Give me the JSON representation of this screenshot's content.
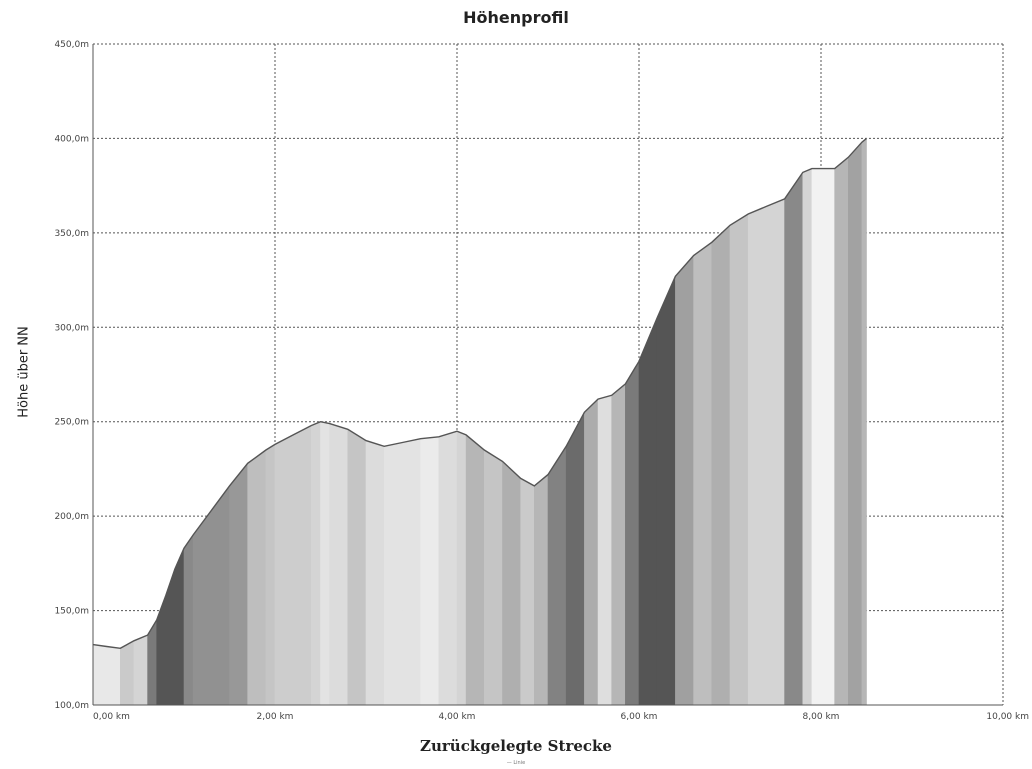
{
  "chart_data": {
    "type": "area",
    "title": "Höhenprofil",
    "xlabel": "Zurückgelegte Strecke",
    "ylabel": "Höhe über NN",
    "legend_label": "— Linie",
    "x_tick_labels": [
      "0,00 km",
      "2,00 km",
      "4,00 km",
      "6,00 km",
      "8,00 km",
      "10,00 km"
    ],
    "x_ticks": [
      0,
      2,
      4,
      6,
      8,
      10
    ],
    "y_tick_labels": [
      "100,0m",
      "150,0m",
      "200,0m",
      "250,0m",
      "300,0m",
      "350,0m",
      "400,0m",
      "450,0m"
    ],
    "y_ticks": [
      100,
      150,
      200,
      250,
      300,
      350,
      400,
      450
    ],
    "xlim": [
      0,
      10
    ],
    "ylim": [
      100,
      450
    ],
    "grid": true,
    "colors": {
      "line": "#555555",
      "fill_dark": "#555555",
      "fill_light": "#f2f2f2",
      "grid": "#555555"
    },
    "x": [
      0.0,
      0.15,
      0.3,
      0.45,
      0.6,
      0.7,
      0.8,
      0.9,
      1.0,
      1.1,
      1.3,
      1.5,
      1.7,
      1.9,
      2.0,
      2.2,
      2.4,
      2.5,
      2.6,
      2.8,
      3.0,
      3.2,
      3.4,
      3.6,
      3.8,
      4.0,
      4.1,
      4.3,
      4.5,
      4.7,
      4.85,
      5.0,
      5.2,
      5.4,
      5.55,
      5.7,
      5.85,
      6.0,
      6.2,
      6.4,
      6.6,
      6.8,
      7.0,
      7.2,
      7.4,
      7.6,
      7.7,
      7.8,
      7.9,
      8.0,
      8.15,
      8.3,
      8.45,
      8.5
    ],
    "y": [
      132,
      131,
      130,
      134,
      137,
      145,
      158,
      172,
      183,
      190,
      203,
      216,
      228,
      235,
      238,
      243,
      248,
      250,
      249,
      246,
      240,
      237,
      239,
      241,
      242,
      245,
      243,
      235,
      229,
      220,
      216,
      222,
      237,
      255,
      262,
      264,
      270,
      282,
      305,
      327,
      338,
      345,
      354,
      360,
      364,
      368,
      375,
      382,
      384,
      384,
      384,
      390,
      398,
      400
    ]
  }
}
